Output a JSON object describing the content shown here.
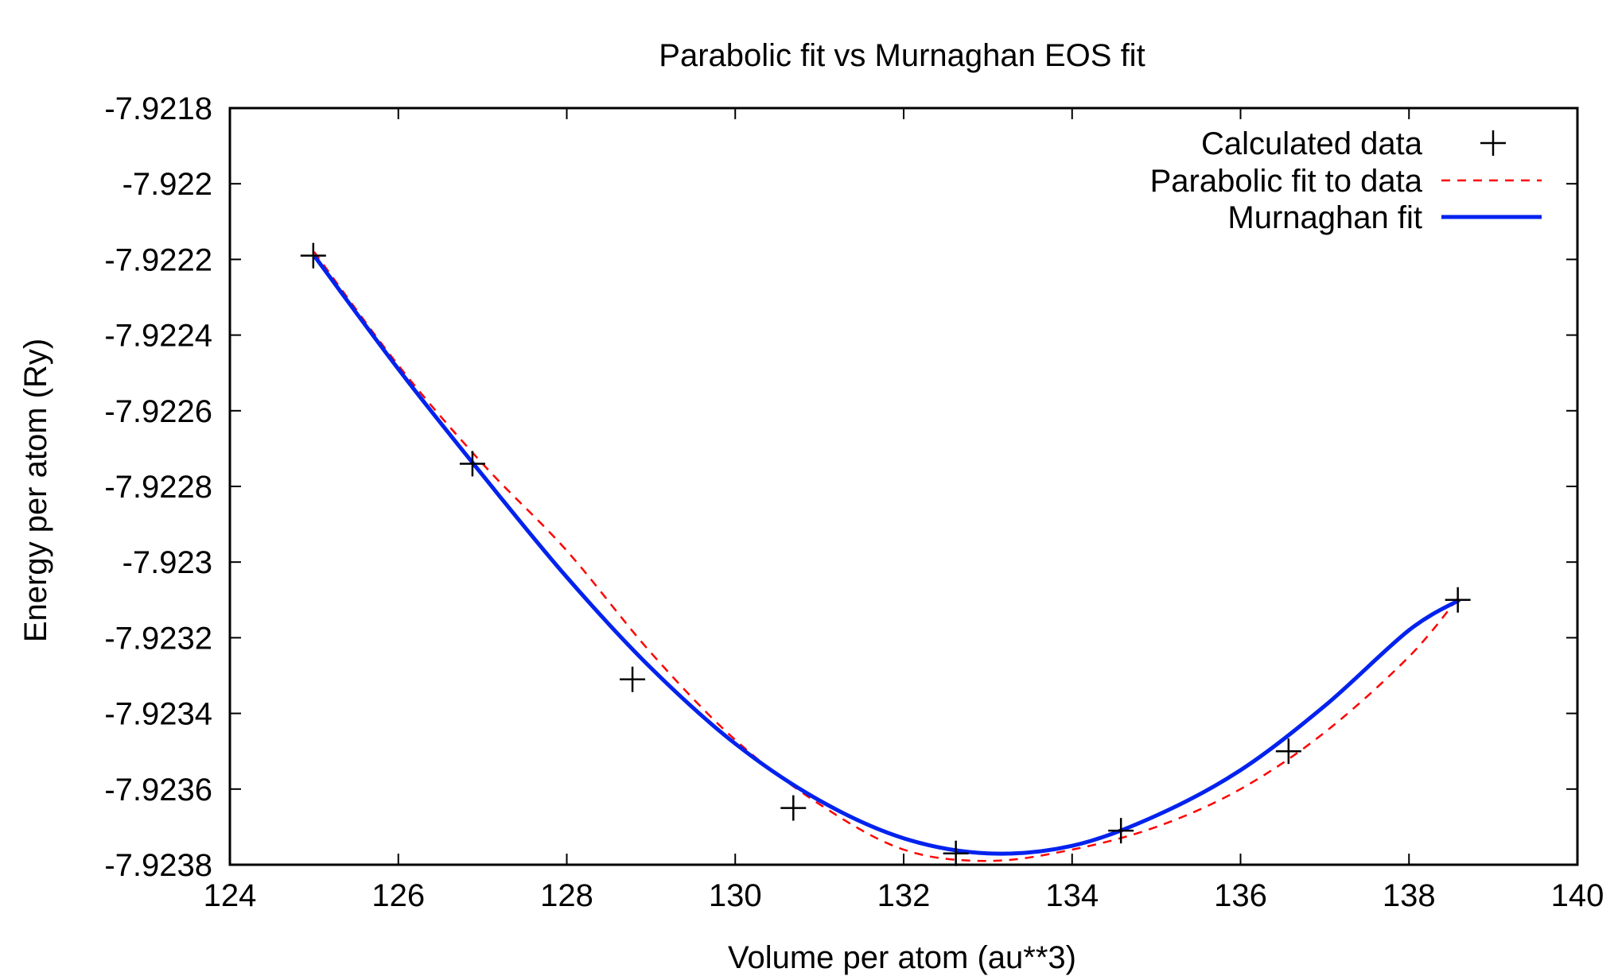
{
  "chart_data": {
    "type": "line",
    "title": "Parabolic fit vs Murnaghan EOS fit",
    "xlabel": "Volume per atom (au**3)",
    "ylabel": "Energy per atom (Ry)",
    "xlim": [
      124,
      140
    ],
    "ylim": [
      -7.9238,
      -7.9218
    ],
    "xticks": [
      124,
      126,
      128,
      130,
      132,
      134,
      136,
      138,
      140
    ],
    "xtick_labels": [
      "124",
      "126",
      "128",
      "130",
      "132",
      "134",
      "136",
      "138",
      "140"
    ],
    "yticks": [
      -7.9218,
      -7.922,
      -7.9222,
      -7.9224,
      -7.9226,
      -7.9228,
      -7.923,
      -7.9232,
      -7.9234,
      -7.9236,
      -7.9238
    ],
    "ytick_labels": [
      "-7.9218",
      "-7.922",
      "-7.9222",
      "-7.9224",
      "-7.9226",
      "-7.9228",
      "-7.923",
      "-7.9232",
      "-7.9234",
      "-7.9236",
      "-7.9238"
    ],
    "grid": false,
    "legend_position": "top-right",
    "series": [
      {
        "name": "Calculated data",
        "kind": "points",
        "marker": "plus",
        "color": "#000000",
        "x": [
          124.99,
          126.88,
          128.78,
          130.69,
          132.62,
          134.58,
          136.57,
          138.58
        ],
        "y": [
          -7.92219,
          -7.92274,
          -7.92331,
          -7.92365,
          -7.92377,
          -7.92371,
          -7.9235,
          -7.9231
        ]
      },
      {
        "name": "Parabolic fit to data",
        "kind": "dashed-line",
        "color": "#ff0000",
        "x": [
          125.0,
          126.0,
          127.0,
          128.0,
          129.0,
          130.0,
          131.0,
          132.0,
          133.0,
          134.0,
          135.0,
          136.0,
          137.0,
          138.0,
          138.6
        ],
        "y": [
          -7.92218,
          -7.92248,
          -7.92274,
          -7.92297,
          -7.92324,
          -7.92347,
          -7.92364,
          -7.92376,
          -7.92379,
          -7.92376,
          -7.9237,
          -7.9236,
          -7.92345,
          -7.92325,
          -7.92309
        ]
      },
      {
        "name": "Murnaghan fit",
        "kind": "solid-line",
        "color": "#0022ee",
        "x": [
          125.0,
          126.0,
          127.0,
          128.0,
          129.0,
          130.0,
          131.0,
          132.0,
          133.0,
          134.0,
          135.0,
          136.0,
          137.0,
          138.0,
          138.6
        ],
        "y": [
          -7.92219,
          -7.92249,
          -7.92277,
          -7.92304,
          -7.92328,
          -7.92348,
          -7.92363,
          -7.92373,
          -7.92377,
          -7.92375,
          -7.92367,
          -7.92355,
          -7.92338,
          -7.92318,
          -7.9231
        ]
      }
    ]
  }
}
